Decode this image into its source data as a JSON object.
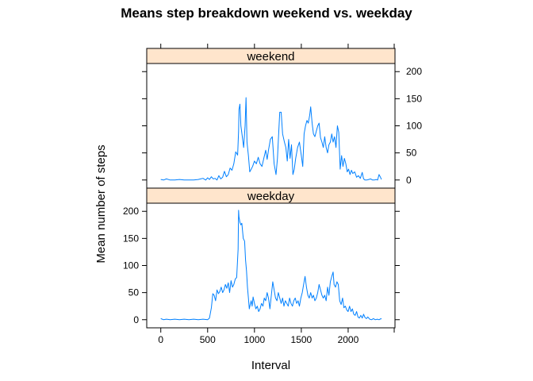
{
  "colors": {
    "line": "#0080ff",
    "strip": "#ffe5cc"
  },
  "chart_data": {
    "type": "line",
    "title": "Means step breakdown weekend vs. weekday",
    "xlabel": "Interval",
    "ylabel": "Mean number of steps",
    "xlim": [
      -150,
      2500
    ],
    "ylim": [
      -15,
      215
    ],
    "x_ticks": [
      0,
      500,
      1000,
      1500,
      2000
    ],
    "y_ticks": [
      0,
      50,
      100,
      150,
      200
    ],
    "layout": "two panels stacked, shared axes",
    "panels": [
      {
        "strip": "weekend",
        "y_axis_side": "right",
        "points": [
          [
            0,
            1
          ],
          [
            30,
            0
          ],
          [
            60,
            2
          ],
          [
            100,
            0
          ],
          [
            150,
            0
          ],
          [
            200,
            1
          ],
          [
            250,
            0
          ],
          [
            300,
            0
          ],
          [
            350,
            0
          ],
          [
            400,
            1
          ],
          [
            450,
            3
          ],
          [
            480,
            0
          ],
          [
            500,
            4
          ],
          [
            520,
            1
          ],
          [
            540,
            6
          ],
          [
            560,
            2
          ],
          [
            580,
            3
          ],
          [
            600,
            0
          ],
          [
            620,
            8
          ],
          [
            640,
            2
          ],
          [
            660,
            5
          ],
          [
            680,
            16
          ],
          [
            700,
            6
          ],
          [
            720,
            10
          ],
          [
            740,
            22
          ],
          [
            760,
            18
          ],
          [
            780,
            30
          ],
          [
            800,
            52
          ],
          [
            820,
            46
          ],
          [
            830,
            90
          ],
          [
            835,
            130
          ],
          [
            845,
            140
          ],
          [
            855,
            100
          ],
          [
            870,
            80
          ],
          [
            885,
            60
          ],
          [
            900,
            100
          ],
          [
            910,
            152
          ],
          [
            920,
            70
          ],
          [
            935,
            45
          ],
          [
            950,
            15
          ],
          [
            980,
            25
          ],
          [
            1000,
            35
          ],
          [
            1020,
            30
          ],
          [
            1040,
            42
          ],
          [
            1060,
            30
          ],
          [
            1080,
            25
          ],
          [
            1100,
            40
          ],
          [
            1120,
            55
          ],
          [
            1135,
            38
          ],
          [
            1150,
            55
          ],
          [
            1170,
            75
          ],
          [
            1190,
            80
          ],
          [
            1210,
            30
          ],
          [
            1230,
            10
          ],
          [
            1245,
            40
          ],
          [
            1260,
            90
          ],
          [
            1270,
            125
          ],
          [
            1285,
            125
          ],
          [
            1300,
            85
          ],
          [
            1320,
            70
          ],
          [
            1335,
            60
          ],
          [
            1350,
            35
          ],
          [
            1365,
            75
          ],
          [
            1380,
            40
          ],
          [
            1395,
            65
          ],
          [
            1410,
            10
          ],
          [
            1425,
            20
          ],
          [
            1440,
            40
          ],
          [
            1460,
            60
          ],
          [
            1480,
            70
          ],
          [
            1500,
            45
          ],
          [
            1515,
            25
          ],
          [
            1530,
            85
          ],
          [
            1545,
            100
          ],
          [
            1560,
            110
          ],
          [
            1575,
            105
          ],
          [
            1590,
            120
          ],
          [
            1600,
            135
          ],
          [
            1615,
            105
          ],
          [
            1630,
            85
          ],
          [
            1645,
            80
          ],
          [
            1660,
            90
          ],
          [
            1675,
            100
          ],
          [
            1690,
            105
          ],
          [
            1705,
            78
          ],
          [
            1720,
            70
          ],
          [
            1735,
            60
          ],
          [
            1750,
            80
          ],
          [
            1765,
            60
          ],
          [
            1780,
            50
          ],
          [
            1795,
            65
          ],
          [
            1810,
            70
          ],
          [
            1825,
            85
          ],
          [
            1840,
            70
          ],
          [
            1855,
            80
          ],
          [
            1870,
            60
          ],
          [
            1885,
            100
          ],
          [
            1900,
            88
          ],
          [
            1915,
            20
          ],
          [
            1930,
            45
          ],
          [
            1945,
            25
          ],
          [
            1960,
            40
          ],
          [
            1975,
            30
          ],
          [
            1990,
            15
          ],
          [
            2005,
            20
          ],
          [
            2020,
            10
          ],
          [
            2035,
            18
          ],
          [
            2050,
            12
          ],
          [
            2070,
            15
          ],
          [
            2090,
            5
          ],
          [
            2110,
            8
          ],
          [
            2130,
            3
          ],
          [
            2150,
            14
          ],
          [
            2165,
            2
          ],
          [
            2180,
            0
          ],
          [
            2200,
            0
          ],
          [
            2220,
            1
          ],
          [
            2240,
            2
          ],
          [
            2260,
            0
          ],
          [
            2280,
            0
          ],
          [
            2300,
            1
          ],
          [
            2315,
            0
          ],
          [
            2330,
            10
          ],
          [
            2345,
            5
          ],
          [
            2355,
            1
          ]
        ]
      },
      {
        "strip": "weekday",
        "y_axis_side": "left",
        "points": [
          [
            0,
            2
          ],
          [
            30,
            0
          ],
          [
            60,
            1
          ],
          [
            100,
            0
          ],
          [
            150,
            1
          ],
          [
            200,
            0
          ],
          [
            250,
            1
          ],
          [
            300,
            0
          ],
          [
            350,
            1
          ],
          [
            400,
            0
          ],
          [
            450,
            1
          ],
          [
            500,
            0
          ],
          [
            520,
            3
          ],
          [
            540,
            22
          ],
          [
            555,
            48
          ],
          [
            570,
            45
          ],
          [
            585,
            35
          ],
          [
            600,
            55
          ],
          [
            615,
            48
          ],
          [
            630,
            52
          ],
          [
            645,
            60
          ],
          [
            660,
            50
          ],
          [
            675,
            55
          ],
          [
            690,
            65
          ],
          [
            705,
            58
          ],
          [
            720,
            68
          ],
          [
            735,
            50
          ],
          [
            750,
            72
          ],
          [
            765,
            60
          ],
          [
            780,
            65
          ],
          [
            795,
            75
          ],
          [
            810,
            78
          ],
          [
            825,
            130
          ],
          [
            830,
            202
          ],
          [
            835,
            190
          ],
          [
            845,
            180
          ],
          [
            855,
            175
          ],
          [
            865,
            178
          ],
          [
            880,
            150
          ],
          [
            895,
            145
          ],
          [
            905,
            110
          ],
          [
            915,
            90
          ],
          [
            925,
            60
          ],
          [
            935,
            40
          ],
          [
            945,
            20
          ],
          [
            955,
            28
          ],
          [
            965,
            35
          ],
          [
            975,
            25
          ],
          [
            985,
            42
          ],
          [
            1000,
            30
          ],
          [
            1015,
            20
          ],
          [
            1030,
            25
          ],
          [
            1045,
            15
          ],
          [
            1060,
            20
          ],
          [
            1075,
            30
          ],
          [
            1090,
            25
          ],
          [
            1105,
            40
          ],
          [
            1120,
            35
          ],
          [
            1135,
            50
          ],
          [
            1150,
            40
          ],
          [
            1165,
            20
          ],
          [
            1180,
            45
          ],
          [
            1195,
            70
          ],
          [
            1210,
            55
          ],
          [
            1225,
            40
          ],
          [
            1240,
            35
          ],
          [
            1255,
            50
          ],
          [
            1270,
            40
          ],
          [
            1285,
            30
          ],
          [
            1300,
            40
          ],
          [
            1315,
            25
          ],
          [
            1330,
            35
          ],
          [
            1345,
            30
          ],
          [
            1360,
            25
          ],
          [
            1375,
            40
          ],
          [
            1390,
            30
          ],
          [
            1405,
            25
          ],
          [
            1420,
            35
          ],
          [
            1435,
            40
          ],
          [
            1450,
            30
          ],
          [
            1465,
            35
          ],
          [
            1480,
            25
          ],
          [
            1495,
            40
          ],
          [
            1510,
            50
          ],
          [
            1525,
            65
          ],
          [
            1540,
            80
          ],
          [
            1555,
            60
          ],
          [
            1570,
            45
          ],
          [
            1585,
            40
          ],
          [
            1600,
            50
          ],
          [
            1615,
            40
          ],
          [
            1630,
            45
          ],
          [
            1645,
            35
          ],
          [
            1660,
            40
          ],
          [
            1675,
            50
          ],
          [
            1690,
            65
          ],
          [
            1705,
            55
          ],
          [
            1720,
            45
          ],
          [
            1735,
            40
          ],
          [
            1750,
            45
          ],
          [
            1765,
            35
          ],
          [
            1780,
            60
          ],
          [
            1795,
            45
          ],
          [
            1810,
            70
          ],
          [
            1825,
            80
          ],
          [
            1840,
            88
          ],
          [
            1850,
            65
          ],
          [
            1865,
            60
          ],
          [
            1880,
            70
          ],
          [
            1895,
            65
          ],
          [
            1910,
            35
          ],
          [
            1925,
            28
          ],
          [
            1940,
            40
          ],
          [
            1955,
            22
          ],
          [
            1970,
            25
          ],
          [
            1985,
            18
          ],
          [
            2000,
            15
          ],
          [
            2015,
            25
          ],
          [
            2030,
            15
          ],
          [
            2045,
            20
          ],
          [
            2060,
            10
          ],
          [
            2075,
            8
          ],
          [
            2090,
            15
          ],
          [
            2105,
            5
          ],
          [
            2120,
            3
          ],
          [
            2135,
            8
          ],
          [
            2150,
            3
          ],
          [
            2165,
            10
          ],
          [
            2180,
            4
          ],
          [
            2195,
            2
          ],
          [
            2210,
            5
          ],
          [
            2230,
            1
          ],
          [
            2250,
            0
          ],
          [
            2270,
            2
          ],
          [
            2290,
            0
          ],
          [
            2310,
            1
          ],
          [
            2330,
            0
          ],
          [
            2350,
            2
          ],
          [
            2355,
            1
          ]
        ]
      }
    ]
  }
}
